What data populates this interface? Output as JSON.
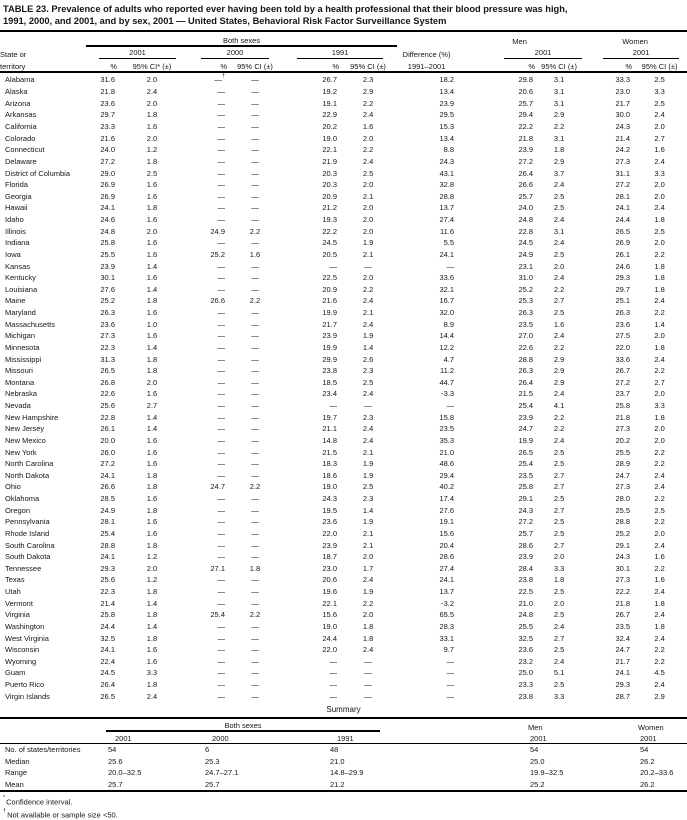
{
  "title": {
    "line1": "TABLE 23. Prevalence of adults who reported ever having been told by a health professional that their blood pressure was high,",
    "line2": "1991, 2000, and 2001, and by sex, 2001 — United States, Behavioral Risk Factor Surveillance System"
  },
  "table": {
    "header": {
      "state_line1": "State or",
      "state_line2": "territory",
      "both_sexes": "Both sexes",
      "men": "Men",
      "women": "Women",
      "year_2001": "2001",
      "year_2000": "2000",
      "year_1991": "1991",
      "men_year": "2001",
      "women_year": "2001",
      "difference_line1": "Difference (%)",
      "difference_line2": "1991–2001",
      "pct": "%",
      "ci_first": "95% CI* (±)",
      "ci": "95% CI (±)"
    },
    "rows": [
      [
        "Alabama",
        "31.6",
        "2.0",
        "—†",
        "—",
        "26.7",
        "2.3",
        "18.2",
        "29.8",
        "3.1",
        "33.3",
        "2.5"
      ],
      [
        "Alaska",
        "21.8",
        "2.4",
        "—",
        "—",
        "19.2",
        "2.9",
        "13.4",
        "20.6",
        "3.1",
        "23.0",
        "3.3"
      ],
      [
        "Arizona",
        "23.6",
        "2.0",
        "—",
        "—",
        "19.1",
        "2.2",
        "23.9",
        "25.7",
        "3.1",
        "21.7",
        "2.5"
      ],
      [
        "Arkansas",
        "29.7",
        "1.8",
        "—",
        "—",
        "22.9",
        "2.4",
        "29.5",
        "29.4",
        "2.9",
        "30.0",
        "2.4"
      ],
      [
        "California",
        "23.3",
        "1.6",
        "—",
        "—",
        "20.2",
        "1.6",
        "15.3",
        "22.2",
        "2.2",
        "24.3",
        "2.0"
      ],
      [
        "Colorado",
        "21.6",
        "2.0",
        "—",
        "—",
        "19.0",
        "2.0",
        "13.4",
        "21.8",
        "3.1",
        "21.4",
        "2.7"
      ],
      [
        "Connecticut",
        "24.0",
        "1.2",
        "—",
        "—",
        "22.1",
        "2.2",
        "8.8",
        "23.9",
        "1.8",
        "24.2",
        "1.6"
      ],
      [
        "Delaware",
        "27.2",
        "1.8",
        "—",
        "—",
        "21.9",
        "2.4",
        "24.3",
        "27.2",
        "2.9",
        "27.3",
        "2.4"
      ],
      [
        "District of Columbia",
        "29.0",
        "2.5",
        "—",
        "—",
        "20.3",
        "2.5",
        "43.1",
        "26.4",
        "3.7",
        "31.1",
        "3.3"
      ],
      [
        "Florida",
        "26.9",
        "1.6",
        "—",
        "—",
        "20.3",
        "2.0",
        "32.8",
        "26.6",
        "2.4",
        "27.2",
        "2.0"
      ],
      [
        "Georgia",
        "26.9",
        "1.6",
        "—",
        "—",
        "20.9",
        "2.1",
        "28.8",
        "25.7",
        "2.5",
        "28.1",
        "2.0"
      ],
      [
        "Hawaii",
        "24.1",
        "1.8",
        "—",
        "—",
        "21.2",
        "2.0",
        "13.7",
        "24.0",
        "2.5",
        "24.1",
        "2.4"
      ],
      [
        "Idaho",
        "24.6",
        "1.6",
        "—",
        "—",
        "19.3",
        "2.0",
        "27.4",
        "24.8",
        "2.4",
        "24.4",
        "1.8"
      ],
      [
        "Illinois",
        "24.8",
        "2.0",
        "24.9",
        "2.2",
        "22.2",
        "2.0",
        "11.6",
        "22.8",
        "3.1",
        "26.5",
        "2.5"
      ],
      [
        "Indiana",
        "25.8",
        "1.6",
        "—",
        "—",
        "24.5",
        "1.9",
        "5.5",
        "24.5",
        "2.4",
        "26.9",
        "2.0"
      ],
      [
        "Iowa",
        "25.5",
        "1.6",
        "25.2",
        "1.6",
        "20.5",
        "2.1",
        "24.1",
        "24.9",
        "2.5",
        "26.1",
        "2.2"
      ],
      [
        "Kansas",
        "23.9",
        "1.4",
        "—",
        "—",
        "—",
        "—",
        "—",
        "23.1",
        "2.0",
        "24.6",
        "1.8"
      ],
      [
        "Kentucky",
        "30.1",
        "1.6",
        "—",
        "—",
        "22.5",
        "2.0",
        "33.6",
        "31.0",
        "2.4",
        "29.3",
        "1.8"
      ],
      [
        "Louisiana",
        "27.6",
        "1.4",
        "—",
        "—",
        "20.9",
        "2.2",
        "32.1",
        "25.2",
        "2.2",
        "29.7",
        "1.8"
      ],
      [
        "Maine",
        "25.2",
        "1.8",
        "26.6",
        "2.2",
        "21.6",
        "2.4",
        "16.7",
        "25.3",
        "2.7",
        "25.1",
        "2.4"
      ],
      [
        "Maryland",
        "26.3",
        "1.6",
        "—",
        "—",
        "19.9",
        "2.1",
        "32.0",
        "26.3",
        "2.5",
        "26.3",
        "2.2"
      ],
      [
        "Massachusetts",
        "23.6",
        "1.0",
        "—",
        "—",
        "21.7",
        "2.4",
        "8.9",
        "23.5",
        "1.6",
        "23.6",
        "1.4"
      ],
      [
        "Michigan",
        "27.3",
        "1.6",
        "—",
        "—",
        "23.9",
        "1.9",
        "14.4",
        "27.0",
        "2.4",
        "27.5",
        "2.0"
      ],
      [
        "Minnesota",
        "22.3",
        "1.4",
        "—",
        "—",
        "19.9",
        "1.4",
        "12.2",
        "22.6",
        "2.2",
        "22.0",
        "1.8"
      ],
      [
        "Mississippi",
        "31.3",
        "1.8",
        "—",
        "—",
        "29.9",
        "2.6",
        "4.7",
        "28.8",
        "2.9",
        "33.6",
        "2.4"
      ],
      [
        "Missouri",
        "26.5",
        "1.8",
        "—",
        "—",
        "23.8",
        "2.3",
        "11.2",
        "26.3",
        "2.9",
        "26.7",
        "2.2"
      ],
      [
        "Montana",
        "26.8",
        "2.0",
        "—",
        "—",
        "18.5",
        "2.5",
        "44.7",
        "26.4",
        "2.9",
        "27.2",
        "2.7"
      ],
      [
        "Nebraska",
        "22.6",
        "1.6",
        "—",
        "—",
        "23.4",
        "2.4",
        "-3.3",
        "21.5",
        "2.4",
        "23.7",
        "2.0"
      ],
      [
        "Nevada",
        "25.6",
        "2.7",
        "—",
        "—",
        "—",
        "—",
        "—",
        "25.4",
        "4.1",
        "25.8",
        "3.3"
      ],
      [
        "New Hampshire",
        "22.8",
        "1.4",
        "—",
        "—",
        "19.7",
        "2.3",
        "15.8",
        "23.9",
        "2.2",
        "21.8",
        "1.8"
      ],
      [
        "New Jersey",
        "26.1",
        "1.4",
        "—",
        "—",
        "21.1",
        "2.4",
        "23.5",
        "24.7",
        "2.2",
        "27.3",
        "2.0"
      ],
      [
        "New Mexico",
        "20.0",
        "1.6",
        "—",
        "—",
        "14.8",
        "2.4",
        "35.3",
        "19.9",
        "2.4",
        "20.2",
        "2.0"
      ],
      [
        "New York",
        "26.0",
        "1.6",
        "—",
        "—",
        "21.5",
        "2.1",
        "21.0",
        "26.5",
        "2.5",
        "25.5",
        "2.2"
      ],
      [
        "North Carolina",
        "27.2",
        "1.6",
        "—",
        "—",
        "18.3",
        "1.9",
        "48.6",
        "25.4",
        "2.5",
        "28.9",
        "2.2"
      ],
      [
        "North Dakota",
        "24.1",
        "1.8",
        "—",
        "—",
        "18.6",
        "1.9",
        "29.4",
        "23.5",
        "2.7",
        "24.7",
        "2.4"
      ],
      [
        "Ohio",
        "26.6",
        "1.8",
        "24.7",
        "2.2",
        "19.0",
        "2.5",
        "40.2",
        "25.8",
        "2.7",
        "27.3",
        "2.4"
      ],
      [
        "Oklahoma",
        "28.5",
        "1.6",
        "—",
        "—",
        "24.3",
        "2.3",
        "17.4",
        "29.1",
        "2.5",
        "28.0",
        "2.2"
      ],
      [
        "Oregon",
        "24.9",
        "1.8",
        "—",
        "—",
        "19.5",
        "1.4",
        "27.6",
        "24.3",
        "2.7",
        "25.5",
        "2.5"
      ],
      [
        "Pennsylvania",
        "28.1",
        "1.6",
        "—",
        "—",
        "23.6",
        "1.9",
        "19.1",
        "27.2",
        "2.5",
        "28.8",
        "2.2"
      ],
      [
        "Rhode Island",
        "25.4",
        "1.6",
        "—",
        "—",
        "22.0",
        "2.1",
        "15.6",
        "25.7",
        "2.5",
        "25.2",
        "2.0"
      ],
      [
        "South Carolina",
        "28.8",
        "1.8",
        "—",
        "—",
        "23.9",
        "2.1",
        "20.4",
        "28.6",
        "2.7",
        "29.1",
        "2.4"
      ],
      [
        "South Dakota",
        "24.1",
        "1.2",
        "—",
        "—",
        "18.7",
        "2.0",
        "28.6",
        "23.9",
        "2.0",
        "24.3",
        "1.6"
      ],
      [
        "Tennessee",
        "29.3",
        "2.0",
        "27.1",
        "1.8",
        "23.0",
        "1.7",
        "27.4",
        "28.4",
        "3.3",
        "30.1",
        "2.2"
      ],
      [
        "Texas",
        "25.6",
        "1.2",
        "—",
        "—",
        "20.6",
        "2.4",
        "24.1",
        "23.8",
        "1.8",
        "27.3",
        "1.6"
      ],
      [
        "Utah",
        "22.3",
        "1.8",
        "—",
        "—",
        "19.6",
        "1.9",
        "13.7",
        "22.5",
        "2.5",
        "22.2",
        "2.4"
      ],
      [
        "Vermont",
        "21.4",
        "1.4",
        "—",
        "—",
        "22.1",
        "2.2",
        "-3.2",
        "21.0",
        "2.0",
        "21.8",
        "1.8"
      ],
      [
        "Virginia",
        "25.8",
        "1.8",
        "25.4",
        "2.2",
        "15.6",
        "2.0",
        "65.5",
        "24.8",
        "2.5",
        "26.7",
        "2.4"
      ],
      [
        "Washington",
        "24.4",
        "1.4",
        "—",
        "—",
        "19.0",
        "1.8",
        "28.3",
        "25.5",
        "2.4",
        "23.5",
        "1.8"
      ],
      [
        "West Virginia",
        "32.5",
        "1.8",
        "—",
        "—",
        "24.4",
        "1.8",
        "33.1",
        "32.5",
        "2.7",
        "32.4",
        "2.4"
      ],
      [
        "Wisconsin",
        "24.1",
        "1.6",
        "—",
        "—",
        "22.0",
        "2.4",
        "9.7",
        "23.6",
        "2.5",
        "24.7",
        "2.2"
      ],
      [
        "Wyoming",
        "22.4",
        "1.6",
        "—",
        "—",
        "—",
        "—",
        "—",
        "23.2",
        "2.4",
        "21.7",
        "2.2"
      ],
      [
        "Guam",
        "24.5",
        "3.3",
        "—",
        "—",
        "—",
        "—",
        "—",
        "25.0",
        "5.1",
        "24.1",
        "4.5"
      ],
      [
        "Puerto Rico",
        "26.4",
        "1.8",
        "—",
        "—",
        "—",
        "—",
        "—",
        "23.3",
        "2.5",
        "29.3",
        "2.4"
      ],
      [
        "Virgin Islands",
        "26.5",
        "2.4",
        "—",
        "—",
        "—",
        "—",
        "—",
        "23.8",
        "3.3",
        "28.7",
        "2.9"
      ]
    ]
  },
  "summary": {
    "heading": "Summary",
    "header": {
      "both_sexes": "Both sexes",
      "men": "Men",
      "women": "Women",
      "year_2001": "2001",
      "year_2000": "2000",
      "year_1991": "1991",
      "men_year": "2001",
      "women_year": "2001"
    },
    "rows": [
      [
        "No. of states/territories",
        "54",
        "6",
        "48",
        "54",
        "54"
      ],
      [
        "Median",
        "25.6",
        "25.3",
        "21.0",
        "25.0",
        "26.2"
      ],
      [
        "Range",
        "20.0–32.5",
        "24.7–27.1",
        "14.8–29.9",
        "19.9–32.5",
        "20.2–33.6"
      ],
      [
        "Mean",
        "25.7",
        "25.7",
        "21.2",
        "25.2",
        "26.2"
      ]
    ]
  },
  "footnotes": [
    {
      "marker": "*",
      "text": "Confidence interval."
    },
    {
      "marker": "†",
      "text": "Not available or sample size <50."
    }
  ]
}
